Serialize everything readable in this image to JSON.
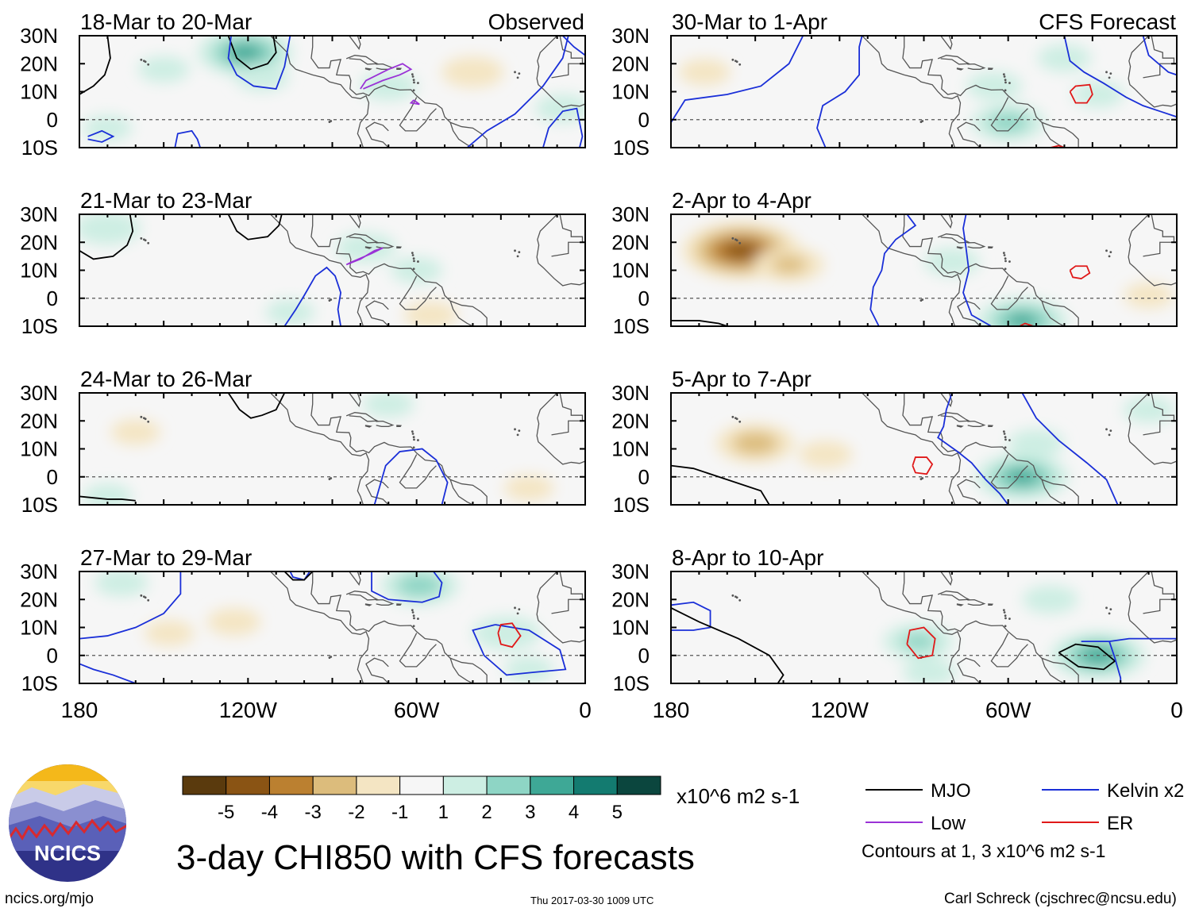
{
  "chart_data": {
    "type": "map",
    "title": "3-day CHI850 with CFS forecasts",
    "variable": "CHI850 (850-hPa velocity potential anomaly)",
    "lon_ticks": [
      "180",
      "120W",
      "60W",
      "0"
    ],
    "lon_values": [
      -180,
      -120,
      -60,
      0
    ],
    "lat_ticks": [
      "30N",
      "20N",
      "10N",
      "0",
      "10S"
    ],
    "lat_values": [
      30,
      20,
      10,
      0,
      -10
    ],
    "panels": [
      {
        "period": "18-Mar to 20-Mar",
        "source": "Observed",
        "shading": [
          {
            "lon": -121,
            "lat": 24,
            "value": 3.2
          },
          {
            "lon": -115,
            "lat": 15,
            "value": 1.2
          },
          {
            "lon": -150,
            "lat": 18,
            "value": 1.1
          },
          {
            "lon": -70,
            "lat": 12,
            "value": 1.4
          },
          {
            "lon": -40,
            "lat": 17,
            "value": -1.6
          },
          {
            "lon": -8,
            "lat": 4,
            "value": 1.3
          },
          {
            "lon": -170,
            "lat": -3,
            "value": 1.0
          }
        ]
      },
      {
        "period": "30-Mar to 1-Apr",
        "source": "CFS Forecast",
        "shading": [
          {
            "lon": -65,
            "lat": 12,
            "value": 1.3
          },
          {
            "lon": -60,
            "lat": -1,
            "value": 2.2
          },
          {
            "lon": -40,
            "lat": 22,
            "value": 1.2
          },
          {
            "lon": -168,
            "lat": 17,
            "value": -1.1
          },
          {
            "lon": -28,
            "lat": 9,
            "value": 1.1
          }
        ]
      },
      {
        "period": "21-Mar to 23-Mar",
        "source": "",
        "shading": [
          {
            "lon": -170,
            "lat": 25,
            "value": 1.8
          },
          {
            "lon": -78,
            "lat": 18,
            "value": 1.5
          },
          {
            "lon": -60,
            "lat": 10,
            "value": 1.1
          },
          {
            "lon": -105,
            "lat": -5,
            "value": 1.0
          },
          {
            "lon": -55,
            "lat": -6,
            "value": -1.2
          }
        ]
      },
      {
        "period": "2-Apr to 4-Apr",
        "source": "",
        "shading": [
          {
            "lon": -155,
            "lat": 17,
            "value": -4.3
          },
          {
            "lon": -138,
            "lat": 12,
            "value": -2.0
          },
          {
            "lon": -80,
            "lat": 13,
            "value": 1.3
          },
          {
            "lon": -55,
            "lat": -8,
            "value": 3.0
          },
          {
            "lon": -10,
            "lat": 1,
            "value": -1.0
          }
        ]
      },
      {
        "period": "24-Mar to 26-Mar",
        "source": "",
        "shading": [
          {
            "lon": -160,
            "lat": 16,
            "value": -1.0
          },
          {
            "lon": -70,
            "lat": 26,
            "value": 1.1
          },
          {
            "lon": -170,
            "lat": -7,
            "value": 1.0
          },
          {
            "lon": -20,
            "lat": -4,
            "value": -1.0
          }
        ]
      },
      {
        "period": "5-Apr to 7-Apr",
        "source": "",
        "shading": [
          {
            "lon": -150,
            "lat": 12,
            "value": -2.4
          },
          {
            "lon": -125,
            "lat": 8,
            "value": -1.2
          },
          {
            "lon": -55,
            "lat": 0,
            "value": 3.1
          },
          {
            "lon": -50,
            "lat": 12,
            "value": 1.3
          },
          {
            "lon": -10,
            "lat": 24,
            "value": 1.1
          }
        ]
      },
      {
        "period": "27-Mar to 29-Mar",
        "source": "",
        "shading": [
          {
            "lon": -125,
            "lat": 12,
            "value": -1.2
          },
          {
            "lon": -148,
            "lat": 8,
            "value": -1.0
          },
          {
            "lon": -59,
            "lat": 25,
            "value": 2.4
          },
          {
            "lon": -28,
            "lat": 8,
            "value": 1.9
          },
          {
            "lon": -165,
            "lat": 26,
            "value": 1.2
          },
          {
            "lon": -20,
            "lat": -5,
            "value": 1.0
          }
        ]
      },
      {
        "period": "8-Apr to 10-Apr",
        "source": "",
        "shading": [
          {
            "lon": -92,
            "lat": 5,
            "value": 2.0
          },
          {
            "lon": -28,
            "lat": 0,
            "value": 3.2
          },
          {
            "lon": -45,
            "lat": 20,
            "value": 1.3
          },
          {
            "lon": -88,
            "lat": -6,
            "value": 1.2
          }
        ]
      }
    ],
    "colorbar": {
      "tick_labels": [
        "-5",
        "-4",
        "-3",
        "-2",
        "-1",
        "1",
        "2",
        "3",
        "4",
        "5"
      ],
      "tick_values": [
        -5,
        -4,
        -3,
        -2,
        -1,
        1,
        2,
        3,
        4,
        5
      ],
      "colors": [
        "#5a3a0d",
        "#8a5414",
        "#bb8030",
        "#dcbc7c",
        "#f4e5c3",
        "#f6f6f6",
        "#cdeee3",
        "#8ed5c5",
        "#3ea896",
        "#137b70",
        "#0b463e"
      ],
      "units": "x10^6 m2 s-1"
    },
    "legend": [
      {
        "label": "MJO",
        "color": "#000000"
      },
      {
        "label": "Kelvin x2",
        "color": "#1a2fd8"
      },
      {
        "label": "Low",
        "color": "#9a32d6"
      },
      {
        "label": "ER",
        "color": "#e01818"
      }
    ],
    "contour_note": "Contours at 1, 3 x10^6 m2 s-1"
  },
  "footer": {
    "logo_text": "NCICS",
    "url": "ncics.org/mjo",
    "timestamp": "Thu 2017-03-30 1009 UTC",
    "author": "Carl Schreck (cjschrec@ncsu.edu)"
  }
}
